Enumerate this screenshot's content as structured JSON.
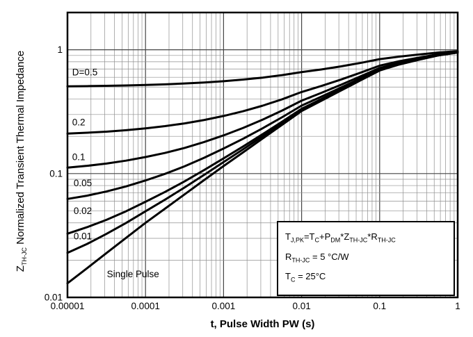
{
  "chart_data": {
    "type": "line",
    "title": "",
    "xlabel": "t, Pulse Width PW (s)",
    "ylabel": "Z_TH-JC Normalized Transient Thermal Impedance",
    "xscale": "log",
    "yscale": "log",
    "xlim": [
      1e-05,
      1
    ],
    "ylim": [
      0.01,
      2
    ],
    "grid": "major and minor log gridlines on both axes",
    "legend_position": "labels on curves",
    "line_color": "#000000",
    "xticks": [
      1e-05,
      0.0001,
      0.001,
      0.01,
      0.1,
      1
    ],
    "xtick_labels": [
      "0.00001",
      "0.0001",
      "0.001",
      "0.01",
      "0.1",
      "1"
    ],
    "yticks": [
      1,
      0.1,
      0.01
    ],
    "ytick_labels": [
      "1",
      "0.1",
      "0.01"
    ],
    "x": [
      1e-05,
      1.78e-05,
      3.16e-05,
      5.62e-05,
      0.0001,
      0.000178,
      0.000316,
      0.000562,
      0.001,
      0.00178,
      0.00316,
      0.00562,
      0.01,
      0.0178,
      0.0316,
      0.0562,
      0.1,
      0.178,
      0.316,
      0.562,
      1
    ],
    "series": [
      {
        "name": "D=0.5",
        "values": [
          0.5065,
          0.5086,
          0.5114,
          0.5151,
          0.52,
          0.5261,
          0.534,
          0.5443,
          0.5575,
          0.5743,
          0.5959,
          0.6238,
          0.66,
          0.6933,
          0.7335,
          0.782,
          0.84,
          0.88,
          0.915,
          0.95,
          0.975
        ]
      },
      {
        "name": "0.2",
        "values": [
          0.2104,
          0.2138,
          0.2182,
          0.2242,
          0.232,
          0.2417,
          0.2543,
          0.2708,
          0.292,
          0.3188,
          0.3534,
          0.398,
          0.456,
          0.5093,
          0.5736,
          0.6512,
          0.744,
          0.808,
          0.864,
          0.92,
          0.96
        ]
      },
      {
        "name": "0.1",
        "values": [
          0.1117,
          0.1155,
          0.1205,
          0.1272,
          0.136,
          0.1469,
          0.1611,
          0.1797,
          0.2035,
          0.2337,
          0.2725,
          0.3228,
          0.388,
          0.4479,
          0.5203,
          0.6076,
          0.712,
          0.784,
          0.847,
          0.91,
          0.955
        ]
      },
      {
        "name": "0.05",
        "values": [
          0.0624,
          0.0663,
          0.0717,
          0.0787,
          0.088,
          0.0995,
          0.1145,
          0.1341,
          0.1593,
          0.1911,
          0.2321,
          0.2851,
          0.354,
          0.4173,
          0.4937,
          0.5858,
          0.696,
          0.772,
          0.8385,
          0.905,
          0.9525
        ]
      },
      {
        "name": "0.02",
        "values": [
          0.0327,
          0.0369,
          0.0423,
          0.0496,
          0.0592,
          0.0711,
          0.0865,
          0.1067,
          0.1327,
          0.1655,
          0.2079,
          0.2626,
          0.3336,
          0.3989,
          0.4777,
          0.5727,
          0.6864,
          0.7648,
          0.8334,
          0.902,
          0.951
        ]
      },
      {
        "name": "0.01",
        "values": [
          0.0229,
          0.027,
          0.0326,
          0.0399,
          0.0496,
          0.0616,
          0.0772,
          0.0976,
          0.1239,
          0.157,
          0.1998,
          0.255,
          0.3268,
          0.3927,
          0.4723,
          0.5684,
          0.6832,
          0.7625,
          0.8317,
          0.901,
          0.9505
        ]
      },
      {
        "name": "Single Pulse",
        "values": [
          0.013,
          0.0172,
          0.0228,
          0.0302,
          0.04,
          0.0521,
          0.0679,
          0.0885,
          0.115,
          0.1485,
          0.1917,
          0.2475,
          0.32,
          0.3866,
          0.467,
          0.564,
          0.68,
          0.76,
          0.83,
          0.9,
          0.95
        ]
      }
    ],
    "curve_labels": [
      {
        "text": "D=0.5",
        "x": 1.15e-05,
        "y": 0.62
      },
      {
        "text": "0.2",
        "x": 1.15e-05,
        "y": 0.245
      },
      {
        "text": "0.1",
        "x": 1.15e-05,
        "y": 0.128
      },
      {
        "text": "0.05",
        "x": 1.2e-05,
        "y": 0.079
      },
      {
        "text": "0.02",
        "x": 1.2e-05,
        "y": 0.047
      },
      {
        "text": "0.01",
        "x": 1.2e-05,
        "y": 0.0295
      },
      {
        "text": "Single Pulse",
        "x": 3.2e-05,
        "y": 0.0145
      }
    ]
  },
  "axis": {
    "y_title": [
      "Z",
      "TH-JC",
      " Normalized Transient Thermal Impedance"
    ],
    "x_title": "t, Pulse Width PW (s)"
  },
  "annotation": {
    "formula": [
      "T",
      "J,PK",
      "=T",
      "C",
      "+P",
      "DM",
      "*Z",
      "TH-JC",
      "*R",
      "TH-JC"
    ],
    "rth_line": [
      "R",
      "TH-JC",
      " = 5 °C/W"
    ],
    "tc_line": [
      "T",
      "C",
      " = 25°C"
    ]
  }
}
